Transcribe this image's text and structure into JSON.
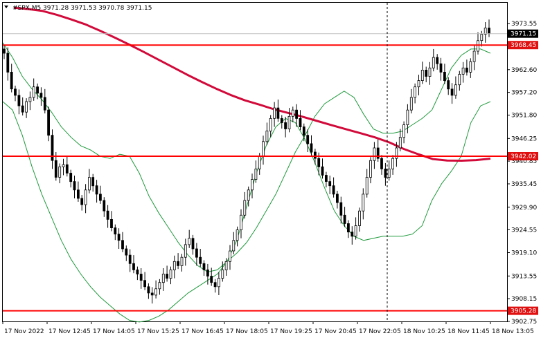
{
  "header": {
    "symbol_text": "#SPX,M5",
    "ohlc_text": "3971.28 3971.53 3970.78 3971.15"
  },
  "colors": {
    "background": "#ffffff",
    "candle": "#000000",
    "level_line": "#ff0000",
    "ma_line": "#d10a3a",
    "band_line": "#1f9a3c",
    "price_line": "#c0c0c0",
    "price_label_bg": "#000000",
    "level_label_bg": "#e01010"
  },
  "chart_data": {
    "type": "candlestick",
    "symbol": "#SPX",
    "timeframe": "M5",
    "ylim": [
      3902.75,
      3978.5
    ],
    "y_ticks": [
      "3973.55",
      "3968.45",
      "3962.60",
      "3957.20",
      "3951.80",
      "3946.25",
      "3940.85",
      "3935.45",
      "3929.90",
      "3924.55",
      "3919.10",
      "3913.55",
      "3908.15",
      "3902.75"
    ],
    "x_ticks": [
      "17 Nov 2022",
      "17 Nov 12:45",
      "17 Nov 14:05",
      "17 Nov 15:25",
      "17 Nov 16:45",
      "17 Nov 18:05",
      "17 Nov 19:25",
      "17 Nov 20:45",
      "17 Nov 22:05",
      "18 Nov 10:25",
      "18 Nov 11:45",
      "18 Nov 13:05"
    ],
    "current_price": "3971.15",
    "levels": [
      "3968.45",
      "3942.02",
      "3905.28"
    ],
    "closes": [
      3966.5,
      3962,
      3958,
      3956.5,
      3954,
      3952.5,
      3955,
      3956,
      3958.5,
      3957,
      3956,
      3953,
      3947,
      3941,
      3937,
      3939.5,
      3940,
      3938,
      3936,
      3934,
      3932,
      3930.5,
      3934,
      3937,
      3935,
      3933,
      3931.5,
      3929,
      3927,
      3925,
      3923.5,
      3922,
      3920,
      3918.5,
      3916.5,
      3915,
      3914,
      3912.5,
      3911,
      3909.5,
      3909,
      3910.5,
      3912,
      3914,
      3913,
      3915,
      3917,
      3916,
      3918,
      3921,
      3922.5,
      3920,
      3918,
      3916.5,
      3915,
      3913.5,
      3912,
      3911,
      3913,
      3915,
      3917,
      3919.5,
      3922,
      3924.5,
      3928,
      3931.5,
      3934,
      3936.5,
      3939,
      3942,
      3945.5,
      3948,
      3951,
      3953.5,
      3951,
      3950,
      3948.5,
      3951.5,
      3953,
      3951,
      3949,
      3947,
      3945,
      3943,
      3941.5,
      3939.5,
      3937.5,
      3936,
      3935,
      3933,
      3931,
      3928,
      3926,
      3924,
      3923,
      3925.5,
      3929,
      3933,
      3937,
      3941,
      3944,
      3941.5,
      3939,
      3937,
      3939,
      3941.5,
      3944,
      3946.5,
      3949.5,
      3953,
      3956,
      3958.5,
      3960,
      3962.5,
      3961,
      3963,
      3965.5,
      3964,
      3962,
      3960,
      3958,
      3956.5,
      3959,
      3961.5,
      3963,
      3962,
      3964.5,
      3967,
      3969.5,
      3971,
      3972.5,
      3971.15
    ],
    "ma_values": [
      3977.3,
      3977.0,
      3976.55,
      3975.6,
      3974.5,
      3973.3,
      3971.8,
      3970.2,
      3968.55,
      3966.8,
      3965.0,
      3963.2,
      3961.4,
      3959.7,
      3958.1,
      3956.6,
      3955.3,
      3954.3,
      3953.2,
      3952.3,
      3951.4,
      3950.4,
      3949.4,
      3948.45,
      3947.5,
      3946.5,
      3945.3,
      3943.75,
      3942.5,
      3941.35,
      3941.0,
      3940.95,
      3941.1,
      3941.45
    ],
    "upper_band": [
      3969.0,
      3965.5,
      3961.0,
      3958.0,
      3955.5,
      3952.5,
      3949.0,
      3946.5,
      3944.5,
      3943.5,
      3942.0,
      3941.5,
      3942.5,
      3942.0,
      3938.0,
      3932.5,
      3928.5,
      3925.0,
      3921.5,
      3918.5,
      3916.0,
      3914.5,
      3915.0,
      3917.0,
      3919.0,
      3921.5,
      3925.0,
      3929.0,
      3933.0,
      3938.0,
      3943.0,
      3947.0,
      3951.5,
      3954.5,
      3956.0,
      3957.5,
      3956.0,
      3952.0,
      3948.5,
      3947.5,
      3947.5,
      3948.0,
      3949.5,
      3951.0,
      3953.0,
      3958.0,
      3963.0,
      3966.0,
      3967.5,
      3967.5,
      3966.5
    ],
    "lower_band": [
      3955.0,
      3953.0,
      3947.0,
      3939.5,
      3933.0,
      3927.5,
      3922.0,
      3917.5,
      3914.0,
      3911.0,
      3908.5,
      3906.5,
      3904.5,
      3903.0,
      3902.6,
      3903.0,
      3904.0,
      3905.5,
      3907.5,
      3909.5,
      3911.0,
      3912.5,
      3914.0,
      3917.0,
      3922.0,
      3930.0,
      3938.0,
      3944.5,
      3949.0,
      3951.0,
      3950.0,
      3946.0,
      3940.5,
      3934.5,
      3929.0,
      3925.5,
      3923.0,
      3922.0,
      3922.5,
      3923.0,
      3923.0,
      3923.0,
      3923.5,
      3925.5,
      3931.5,
      3935.5,
      3938.5,
      3942.0,
      3950.0,
      3954.0,
      3955.0
    ]
  }
}
